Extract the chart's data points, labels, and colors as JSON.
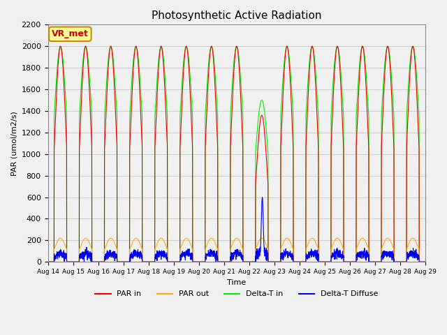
{
  "title": "Photosynthetic Active Radiation",
  "xlabel": "Time",
  "ylabel": "PAR (umol/m2/s)",
  "ylim": [
    0,
    2200
  ],
  "legend_labels": [
    "PAR in",
    "PAR out",
    "Delta-T in",
    "Delta-T Diffuse"
  ],
  "colors": {
    "PAR_in": "#ee0000",
    "PAR_out": "#ffaa00",
    "Delta_T_in": "#00ee00",
    "Delta_T_Diffuse": "#0000ee"
  },
  "annotation_text": "VR_met",
  "annotation_color": "#cc0000",
  "annotation_bg": "#ffff99",
  "num_days": 15,
  "title_fontsize": 11
}
